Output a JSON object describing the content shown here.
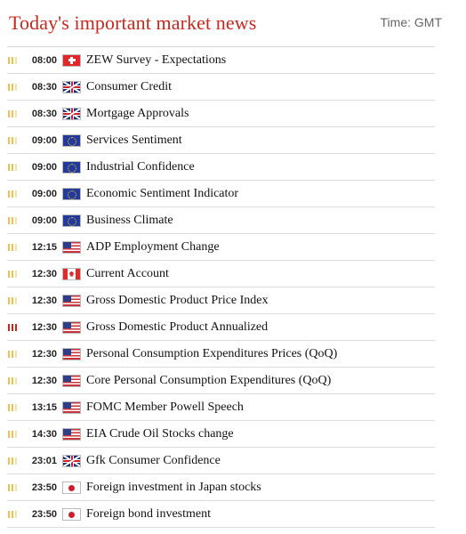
{
  "header": {
    "title": "Today's important market news",
    "timezone_label": "Time: GMT"
  },
  "importance_colors": {
    "medium": "#f1c24a",
    "high": "#d9201c"
  },
  "events": [
    {
      "time": "08:00",
      "country": "CH",
      "flag_icon": "switzerland-flag-icon",
      "importance": "medium",
      "name": "ZEW Survey - Expectations"
    },
    {
      "time": "08:30",
      "country": "GB",
      "flag_icon": "uk-flag-icon",
      "importance": "medium",
      "name": "Consumer Credit"
    },
    {
      "time": "08:30",
      "country": "GB",
      "flag_icon": "uk-flag-icon",
      "importance": "medium",
      "name": "Mortgage Approvals"
    },
    {
      "time": "09:00",
      "country": "EU",
      "flag_icon": "eu-flag-icon",
      "importance": "medium",
      "name": "Services Sentiment"
    },
    {
      "time": "09:00",
      "country": "EU",
      "flag_icon": "eu-flag-icon",
      "importance": "medium",
      "name": "Industrial Confidence"
    },
    {
      "time": "09:00",
      "country": "EU",
      "flag_icon": "eu-flag-icon",
      "importance": "medium",
      "name": "Economic Sentiment Indicator"
    },
    {
      "time": "09:00",
      "country": "EU",
      "flag_icon": "eu-flag-icon",
      "importance": "medium",
      "name": "Business Climate"
    },
    {
      "time": "12:15",
      "country": "US",
      "flag_icon": "us-flag-icon",
      "importance": "medium",
      "name": "ADP Employment Change"
    },
    {
      "time": "12:30",
      "country": "CA",
      "flag_icon": "canada-flag-icon",
      "importance": "medium",
      "name": "Current Account"
    },
    {
      "time": "12:30",
      "country": "US",
      "flag_icon": "us-flag-icon",
      "importance": "medium",
      "name": "Gross Domestic Product Price Index"
    },
    {
      "time": "12:30",
      "country": "US",
      "flag_icon": "us-flag-icon",
      "importance": "high",
      "name": "Gross Domestic Product Annualized"
    },
    {
      "time": "12:30",
      "country": "US",
      "flag_icon": "us-flag-icon",
      "importance": "medium",
      "name": "Personal Consumption Expenditures Prices (QoQ)"
    },
    {
      "time": "12:30",
      "country": "US",
      "flag_icon": "us-flag-icon",
      "importance": "medium",
      "name": "Core Personal Consumption Expenditures (QoQ)"
    },
    {
      "time": "13:15",
      "country": "US",
      "flag_icon": "us-flag-icon",
      "importance": "medium",
      "name": "FOMC Member Powell Speech"
    },
    {
      "time": "14:30",
      "country": "US",
      "flag_icon": "us-flag-icon",
      "importance": "medium",
      "name": "EIA Crude Oil Stocks change"
    },
    {
      "time": "23:01",
      "country": "GB",
      "flag_icon": "uk-flag-icon",
      "importance": "medium",
      "name": "Gfk Consumer Confidence"
    },
    {
      "time": "23:50",
      "country": "JP",
      "flag_icon": "japan-flag-icon",
      "importance": "medium",
      "name": "Foreign investment in Japan stocks"
    },
    {
      "time": "23:50",
      "country": "JP",
      "flag_icon": "japan-flag-icon",
      "importance": "medium",
      "name": "Foreign bond investment"
    }
  ]
}
